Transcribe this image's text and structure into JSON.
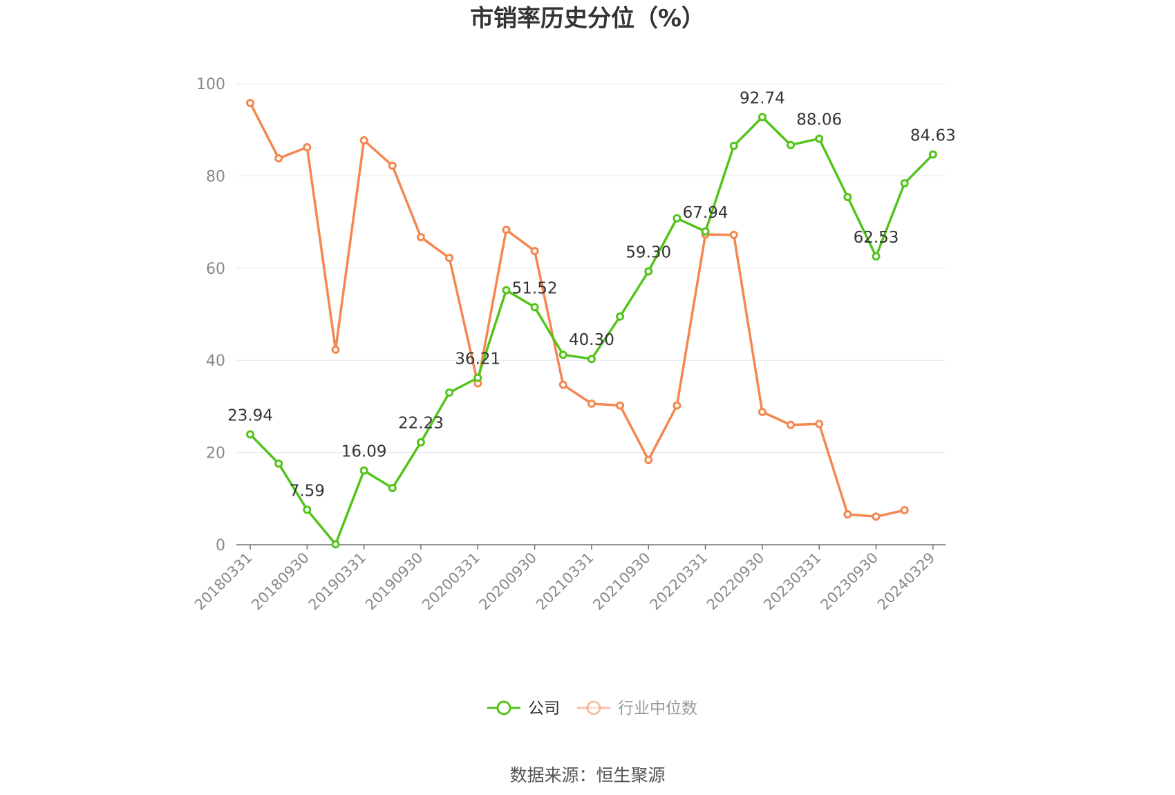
{
  "chart_data": {
    "type": "line",
    "title": "市销率历史分位（%）",
    "source": "数据来源：恒生聚源",
    "ylim": [
      0,
      100
    ],
    "yticks": [
      "0",
      "20",
      "40",
      "60",
      "80",
      "100"
    ],
    "xtick_labels": [
      "20180331",
      "20180930",
      "20190331",
      "20190930",
      "20200331",
      "20200930",
      "20210331",
      "20210930",
      "20220331",
      "20220930",
      "20230331",
      "20230930",
      "20240329"
    ],
    "grid": true,
    "legend_position": "bottom-center",
    "series": [
      {
        "name": "公司",
        "color": "#52c41a",
        "values": [
          23.94,
          17.6,
          7.59,
          0.1,
          16.09,
          12.3,
          22.23,
          33.0,
          36.21,
          55.2,
          51.52,
          41.2,
          40.3,
          49.5,
          59.3,
          70.8,
          67.94,
          86.5,
          92.74,
          86.7,
          88.06,
          75.4,
          62.53,
          78.4,
          84.63
        ],
        "labels": [
          "23.94",
          "",
          "7.59",
          "",
          "16.09",
          "",
          "22.23",
          "",
          "36.21",
          "",
          "51.52",
          "",
          "40.30",
          "",
          "59.30",
          "",
          "67.94",
          "",
          "92.74",
          "",
          "88.06",
          "",
          "62.53",
          "",
          "84.63"
        ]
      },
      {
        "name": "行业中位数",
        "color": "#f4874f",
        "values": [
          95.8,
          83.8,
          86.2,
          42.3,
          87.7,
          82.2,
          66.7,
          62.2,
          35.0,
          68.3,
          63.7,
          34.7,
          30.6,
          30.2,
          18.4,
          30.2,
          67.3,
          67.2,
          28.8,
          26.0,
          26.2,
          6.6,
          6.1,
          7.5,
          null
        ]
      }
    ]
  }
}
